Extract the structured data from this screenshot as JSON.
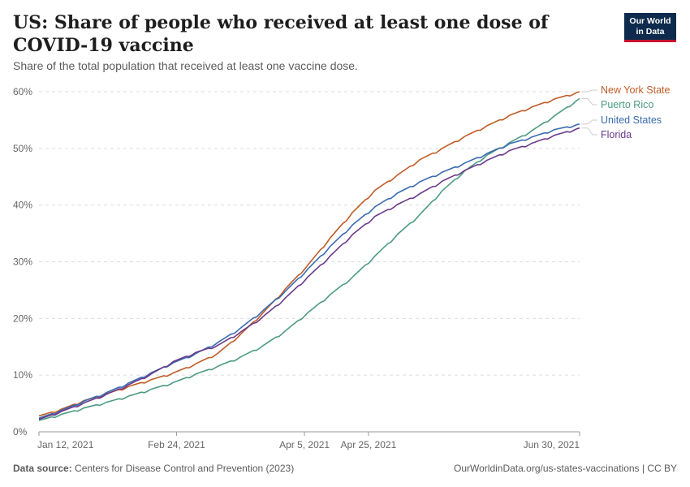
{
  "header": {
    "title": "US: Share of people who received at least one dose of COVID-19 vaccine",
    "subtitle": "Share of the total population that received at least one vaccine dose.",
    "logo_line1": "Our World",
    "logo_line2": "in Data"
  },
  "footer": {
    "source_label": "Data source:",
    "source_text": "Centers for Disease Control and Prevention (2023)",
    "url_license": "OurWorldinData.org/us-states-vaccinations | CC BY"
  },
  "chart_data": {
    "type": "line",
    "title": "US: Share of people who received at least one dose of COVID-19 vaccine",
    "subtitle": "Share of the total population that received at least one vaccine dose.",
    "xlabel": "",
    "ylabel": "",
    "x_range": [
      "2021-01-12",
      "2021-06-30"
    ],
    "ylim": [
      0,
      60
    ],
    "y_ticks": [
      0,
      10,
      20,
      30,
      40,
      50,
      60
    ],
    "y_tick_labels": [
      "0%",
      "10%",
      "20%",
      "30%",
      "40%",
      "50%",
      "60%"
    ],
    "x_ticks": [
      "2021-01-12",
      "2021-02-24",
      "2021-04-05",
      "2021-04-25",
      "2021-06-30"
    ],
    "x_tick_labels": [
      "Jan 12, 2021",
      "Feb 24, 2021",
      "Apr 5, 2021",
      "Apr 25, 2021",
      "Jun 30, 2021"
    ],
    "grid": "horizontal dashed",
    "legend_placement": "right, at line ends",
    "series": [
      {
        "name": "New York State",
        "color": "#c15c27",
        "points": [
          [
            "2021-01-12",
            2.8
          ],
          [
            "2021-01-19",
            4.0
          ],
          [
            "2021-01-26",
            5.5
          ],
          [
            "2021-02-02",
            6.7
          ],
          [
            "2021-02-09",
            8.0
          ],
          [
            "2021-02-16",
            9.2
          ],
          [
            "2021-02-23",
            10.4
          ],
          [
            "2021-03-02",
            12.0
          ],
          [
            "2021-03-09",
            13.9
          ],
          [
            "2021-03-16",
            17.2
          ],
          [
            "2021-03-23",
            21.0
          ],
          [
            "2021-03-30",
            25.2
          ],
          [
            "2021-04-06",
            29.4
          ],
          [
            "2021-04-13",
            34.2
          ],
          [
            "2021-04-20",
            38.7
          ],
          [
            "2021-04-27",
            42.6
          ],
          [
            "2021-05-04",
            45.3
          ],
          [
            "2021-05-11",
            48.0
          ],
          [
            "2021-05-18",
            50.0
          ],
          [
            "2021-05-25",
            52.1
          ],
          [
            "2021-06-01",
            54.0
          ],
          [
            "2021-06-08",
            55.8
          ],
          [
            "2021-06-15",
            57.3
          ],
          [
            "2021-06-22",
            58.7
          ],
          [
            "2021-06-30",
            60.0
          ]
        ]
      },
      {
        "name": "Puerto Rico",
        "color": "#4c9a84",
        "points": [
          [
            "2021-01-12",
            2.0
          ],
          [
            "2021-01-19",
            3.1
          ],
          [
            "2021-01-26",
            4.2
          ],
          [
            "2021-02-02",
            5.2
          ],
          [
            "2021-02-09",
            6.3
          ],
          [
            "2021-02-16",
            7.5
          ],
          [
            "2021-02-23",
            8.7
          ],
          [
            "2021-03-02",
            10.2
          ],
          [
            "2021-03-09",
            11.6
          ],
          [
            "2021-03-16",
            13.2
          ],
          [
            "2021-03-23",
            15.2
          ],
          [
            "2021-03-30",
            17.8
          ],
          [
            "2021-04-06",
            21.0
          ],
          [
            "2021-04-13",
            24.2
          ],
          [
            "2021-04-20",
            27.3
          ],
          [
            "2021-04-27",
            31.0
          ],
          [
            "2021-05-04",
            34.8
          ],
          [
            "2021-05-11",
            38.3
          ],
          [
            "2021-05-18",
            42.5
          ],
          [
            "2021-05-25",
            46.0
          ],
          [
            "2021-06-01",
            48.8
          ],
          [
            "2021-06-08",
            51.0
          ],
          [
            "2021-06-15",
            53.1
          ],
          [
            "2021-06-22",
            55.7
          ],
          [
            "2021-06-30",
            58.8
          ]
        ]
      },
      {
        "name": "United States",
        "color": "#3a6bb0",
        "points": [
          [
            "2021-01-12",
            2.4
          ],
          [
            "2021-01-19",
            3.8
          ],
          [
            "2021-01-26",
            5.4
          ],
          [
            "2021-02-02",
            6.9
          ],
          [
            "2021-02-09",
            8.6
          ],
          [
            "2021-02-16",
            10.4
          ],
          [
            "2021-02-23",
            12.2
          ],
          [
            "2021-03-02",
            13.8
          ],
          [
            "2021-03-09",
            15.8
          ],
          [
            "2021-03-16",
            18.3
          ],
          [
            "2021-03-23",
            21.4
          ],
          [
            "2021-03-30",
            24.8
          ],
          [
            "2021-04-06",
            28.7
          ],
          [
            "2021-04-13",
            32.7
          ],
          [
            "2021-04-20",
            36.5
          ],
          [
            "2021-04-27",
            39.7
          ],
          [
            "2021-05-04",
            42.1
          ],
          [
            "2021-05-11",
            44.1
          ],
          [
            "2021-05-18",
            45.8
          ],
          [
            "2021-05-25",
            47.4
          ],
          [
            "2021-06-01",
            49.1
          ],
          [
            "2021-06-08",
            50.8
          ],
          [
            "2021-06-15",
            52.0
          ],
          [
            "2021-06-22",
            53.3
          ],
          [
            "2021-06-30",
            54.3
          ]
        ]
      },
      {
        "name": "Florida",
        "color": "#6a3a8a",
        "points": [
          [
            "2021-01-12",
            2.2
          ],
          [
            "2021-01-19",
            3.6
          ],
          [
            "2021-01-26",
            5.1
          ],
          [
            "2021-02-02",
            6.6
          ],
          [
            "2021-02-09",
            8.3
          ],
          [
            "2021-02-16",
            10.2
          ],
          [
            "2021-02-23",
            12.4
          ],
          [
            "2021-03-02",
            14.0
          ],
          [
            "2021-03-09",
            15.3
          ],
          [
            "2021-03-16",
            17.6
          ],
          [
            "2021-03-23",
            20.3
          ],
          [
            "2021-03-30",
            23.6
          ],
          [
            "2021-04-06",
            27.3
          ],
          [
            "2021-04-13",
            31.0
          ],
          [
            "2021-04-20",
            34.8
          ],
          [
            "2021-04-27",
            38.0
          ],
          [
            "2021-05-04",
            40.1
          ],
          [
            "2021-05-11",
            42.0
          ],
          [
            "2021-05-18",
            44.2
          ],
          [
            "2021-05-25",
            46.1
          ],
          [
            "2021-06-01",
            47.9
          ],
          [
            "2021-06-08",
            49.6
          ],
          [
            "2021-06-15",
            50.9
          ],
          [
            "2021-06-22",
            52.3
          ],
          [
            "2021-06-30",
            53.6
          ]
        ]
      }
    ]
  }
}
